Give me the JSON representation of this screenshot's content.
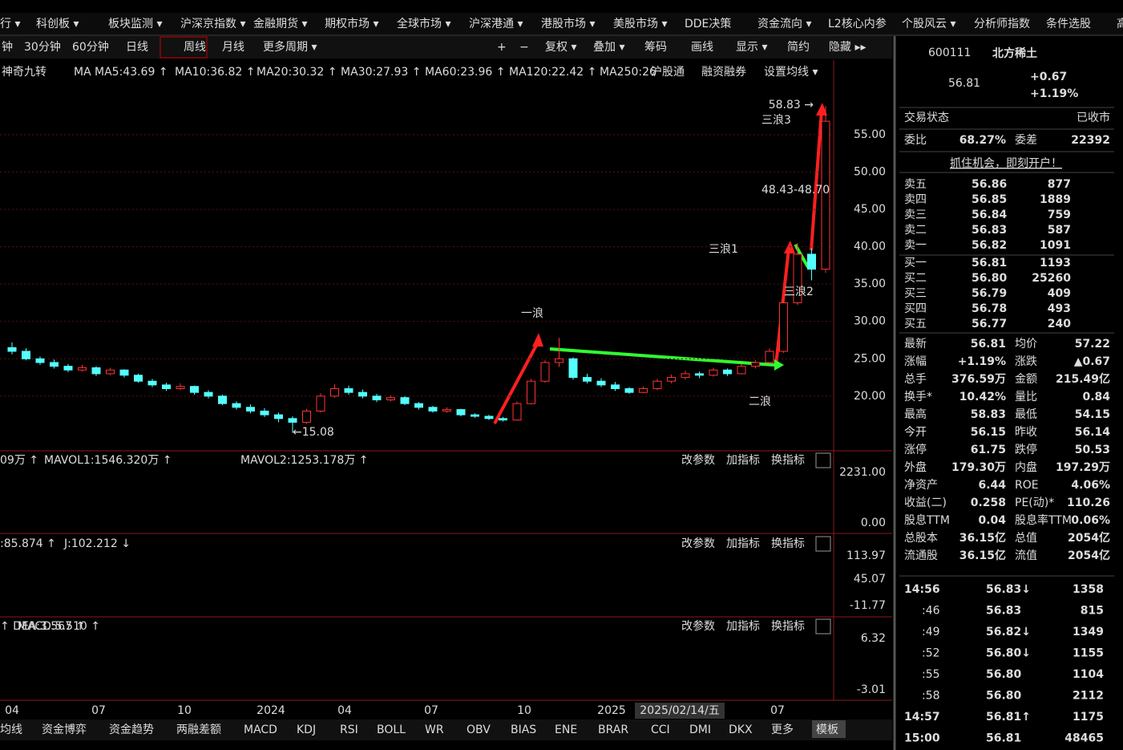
{
  "menu": [
    "行 ▾",
    "科创板 ▾",
    "板块监测 ▾",
    "沪深京指数 ▾",
    "金融期货 ▾",
    "期权市场 ▾",
    "全球市场 ▾",
    "沪深港通 ▾",
    "港股市场 ▾",
    "美股市场 ▾",
    "DDE决策",
    "资金流向 ▾",
    "L2核心内参",
    "个股风云 ▾",
    "分析师指数",
    "条件选股",
    "高"
  ],
  "toolbar": [
    "钟",
    "30分钟",
    "60分钟",
    "日线",
    "周线",
    "月线",
    "更多周期 ▾",
    "+",
    "−",
    "复权 ▾",
    "叠加 ▾",
    "筹码",
    "画线",
    "显示 ▾",
    "简约",
    "隐藏 ▸▸"
  ],
  "ma_legend": [
    {
      "text": "神奇九转",
      "color": "#9a9a9a"
    },
    {
      "text": "MA",
      "color": "#9a9a9a"
    },
    {
      "text": "MA5:43.69 ↑",
      "color": "#ffffff"
    },
    {
      "text": "MA10:36.82 ↑",
      "color": "#ffff40"
    },
    {
      "text": "MA20:30.32 ↑",
      "color": "#ff40ff"
    },
    {
      "text": "MA30:27.93 ↑",
      "color": "#40ff40"
    },
    {
      "text": "MA60:23.96 ↑",
      "color": "#e0e0e0"
    },
    {
      "text": "MA120:22.42 ↑",
      "color": "#40c0ff"
    },
    {
      "text": "MA250:26",
      "color": "#40c0ff"
    },
    {
      "text": "沪股通",
      "color": "#9a9a9a"
    },
    {
      "text": "融资融券",
      "color": "#9a9a9a"
    },
    {
      "text": "设置均线 ▾",
      "color": "#9a9a9a"
    }
  ],
  "chart_data": {
    "type": "candlestick",
    "ylim": [
      14,
      62
    ],
    "yticks": [
      {
        "value": 20,
        "label": "20.00"
      },
      {
        "value": 25,
        "label": "25.00"
      },
      {
        "value": 30,
        "label": "30.00"
      },
      {
        "value": 35,
        "label": "35.00"
      },
      {
        "value": 40,
        "label": "40.00"
      },
      {
        "value": 45,
        "label": "45.00"
      },
      {
        "value": 50,
        "label": "50.00"
      },
      {
        "value": 55,
        "label": "55.00"
      }
    ],
    "grid": true,
    "up_color": "#ff3232",
    "down_color": "#54ffff",
    "candles": [
      [
        26.5,
        27.2,
        25.6,
        26
      ],
      [
        26,
        26.4,
        24.8,
        25
      ],
      [
        25,
        25.3,
        24.2,
        24.5
      ],
      [
        24.5,
        24.9,
        23.7,
        24
      ],
      [
        24,
        24.3,
        23.2,
        23.5
      ],
      [
        23.5,
        24.2,
        23.3,
        23.8
      ],
      [
        23.8,
        24,
        22.7,
        23
      ],
      [
        23,
        23.8,
        22.8,
        23.5
      ],
      [
        23.5,
        23.6,
        22.5,
        22.8
      ],
      [
        22.8,
        23,
        21.8,
        22
      ],
      [
        22,
        22.3,
        21.2,
        21.5
      ],
      [
        21.5,
        21.8,
        20.7,
        21
      ],
      [
        21,
        21.7,
        20.8,
        21.3
      ],
      [
        21.3,
        21.4,
        20.2,
        20.5
      ],
      [
        20.5,
        20.8,
        19.7,
        20
      ],
      [
        20,
        20.2,
        18.8,
        19
      ],
      [
        19,
        19.3,
        18.2,
        18.5
      ],
      [
        18.5,
        18.9,
        17.7,
        18
      ],
      [
        18,
        18.4,
        17.2,
        17.5
      ],
      [
        17.5,
        17.8,
        16.5,
        17
      ],
      [
        17,
        17.3,
        15.08,
        16.5
      ],
      [
        16.5,
        18.3,
        16.3,
        18
      ],
      [
        18,
        20.4,
        17.8,
        20
      ],
      [
        20,
        21.6,
        19.8,
        21
      ],
      [
        21,
        21.4,
        20.2,
        20.5
      ],
      [
        20.5,
        20.9,
        19.7,
        20
      ],
      [
        20,
        20.3,
        19.2,
        19.5
      ],
      [
        19.5,
        20.1,
        19.3,
        19.8
      ],
      [
        19.8,
        20,
        18.8,
        19
      ],
      [
        19,
        19.2,
        18.2,
        18.5
      ],
      [
        18.5,
        18.7,
        17.8,
        18
      ],
      [
        18,
        18.5,
        17.8,
        18.2
      ],
      [
        18.2,
        18.3,
        17.3,
        17.5
      ],
      [
        17.5,
        17.7,
        17.1,
        17.3
      ],
      [
        17.3,
        17.5,
        16.8,
        17
      ],
      [
        17,
        17.2,
        16.6,
        16.8
      ],
      [
        16.8,
        19.3,
        16.7,
        19
      ],
      [
        19,
        22.3,
        18.9,
        22
      ],
      [
        22,
        24.8,
        21.8,
        24.5
      ],
      [
        24.5,
        27.8,
        23.9,
        25
      ],
      [
        25,
        25.2,
        22.2,
        22.5
      ],
      [
        22.5,
        23,
        21.7,
        22
      ],
      [
        22,
        22.4,
        21.2,
        21.5
      ],
      [
        21.5,
        21.9,
        20.7,
        21
      ],
      [
        21,
        21.2,
        20.3,
        20.5
      ],
      [
        20.5,
        21.3,
        20.4,
        21
      ],
      [
        21,
        22.3,
        20.8,
        22
      ],
      [
        22,
        22.9,
        21.7,
        22.5
      ],
      [
        22.5,
        23.4,
        22.2,
        23
      ],
      [
        23,
        23.3,
        22.4,
        22.8
      ],
      [
        22.8,
        23.8,
        22.6,
        23.5
      ],
      [
        23.5,
        23.7,
        22.7,
        23
      ],
      [
        23,
        24.3,
        22.9,
        24
      ],
      [
        24,
        24.8,
        23.7,
        24.5
      ],
      [
        24.5,
        26.4,
        24.3,
        26
      ],
      [
        26,
        33,
        25.8,
        32.5
      ],
      [
        32.5,
        40.5,
        32.2,
        39
      ],
      [
        39,
        39.8,
        35.5,
        37
      ],
      [
        37,
        58.83,
        36.5,
        56.81
      ]
    ],
    "annotations": [
      "58.83 →",
      "←15.08",
      "48.43-48.70",
      "一浪",
      "三浪1",
      "三浪2",
      "三浪3",
      "二浪"
    ]
  },
  "panels": {
    "buttons": [
      "改参数",
      "加指标",
      "换指标"
    ],
    "volume": {
      "legend": [
        "09万 ↑",
        "MAVOL1:1546.320万 ↑",
        "MAVOL2:1253.178万 ↑"
      ],
      "axis": [
        "2231.00",
        "0.00"
      ]
    },
    "kdj": {
      "legend": [
        ":85.874 ↑",
        "J:102.212 ↓"
      ],
      "axis": [
        "113.97",
        "45.07",
        "-11.77"
      ]
    },
    "macd": {
      "legend": [
        "↑ DEA:3.567 ↑",
        "MACD:5.510 ↑"
      ],
      "axis": [
        "6.32",
        "-3.01"
      ]
    }
  },
  "x_labels": [
    "04",
    "07",
    "10",
    "2024",
    "04",
    "07",
    "10",
    "2025",
    "07"
  ],
  "cursor_date": "2025/02/14/五",
  "tabs": [
    "均线",
    "资金博弈",
    "资金趋势",
    "两融差额",
    "MACD",
    "KDJ",
    "RSI",
    "BOLL",
    "WR",
    "OBV",
    "BIAS",
    "ENE",
    "BRAR",
    "CCI",
    "DMI",
    "DKX",
    "更多",
    "模板"
  ],
  "quote": {
    "code": "600111",
    "name": "北方稀土",
    "price": "56.81",
    "change": "+0.67",
    "pct": "+1.19%",
    "status": [
      "交易状态",
      "已收市"
    ],
    "ratio": [
      "委比",
      "68.27%",
      "委差",
      "22392"
    ],
    "banner": "抓住机会，即刻开户！",
    "sells": [
      [
        "卖五",
        "56.86",
        "877"
      ],
      [
        "卖四",
        "56.85",
        "1889"
      ],
      [
        "卖三",
        "56.84",
        "759"
      ],
      [
        "卖二",
        "56.83",
        "587"
      ],
      [
        "卖一",
        "56.82",
        "1091"
      ]
    ],
    "buys": [
      [
        "买一",
        "56.81",
        "1193"
      ],
      [
        "买二",
        "56.80",
        "25260"
      ],
      [
        "买三",
        "56.79",
        "409"
      ],
      [
        "买四",
        "56.78",
        "493"
      ],
      [
        "买五",
        "56.77",
        "240"
      ]
    ],
    "stats": [
      [
        "最新",
        "56.81",
        "均价",
        "57.22"
      ],
      [
        "涨幅",
        "+1.19%",
        "涨跌",
        "▲0.67"
      ],
      [
        "总手",
        "376.59万",
        "金额",
        "215.49亿"
      ],
      [
        "换手*",
        "10.42%",
        "量比",
        "0.84"
      ],
      [
        "最高",
        "58.83",
        "最低",
        "54.15"
      ],
      [
        "今开",
        "56.15",
        "昨收",
        "56.14"
      ],
      [
        "涨停",
        "61.75",
        "跌停",
        "50.53"
      ],
      [
        "外盘",
        "179.30万",
        "内盘",
        "197.29万"
      ],
      [
        "净资产",
        "6.44",
        "ROE",
        "4.06%"
      ],
      [
        "收益(二)",
        "0.258",
        "PE(动)*",
        "110.26"
      ],
      [
        "股息TTM",
        "0.04",
        "股息率TTM",
        "0.06%"
      ],
      [
        "总股本",
        "36.15亿",
        "总值",
        "2054亿"
      ],
      [
        "流通股",
        "36.15亿",
        "流值",
        "2054亿"
      ]
    ],
    "ticks": [
      [
        "14:56",
        "56.83↓",
        "1358"
      ],
      [
        ":46",
        "56.83",
        "815"
      ],
      [
        ":49",
        "56.82↓",
        "1349"
      ],
      [
        ":52",
        "56.80↓",
        "1155"
      ],
      [
        ":55",
        "56.80",
        "1104"
      ],
      [
        ":58",
        "56.80",
        "2112"
      ],
      [
        "14:57",
        "56.81↑",
        "1175"
      ],
      [
        "15:00",
        "56.81",
        "48465"
      ]
    ]
  }
}
